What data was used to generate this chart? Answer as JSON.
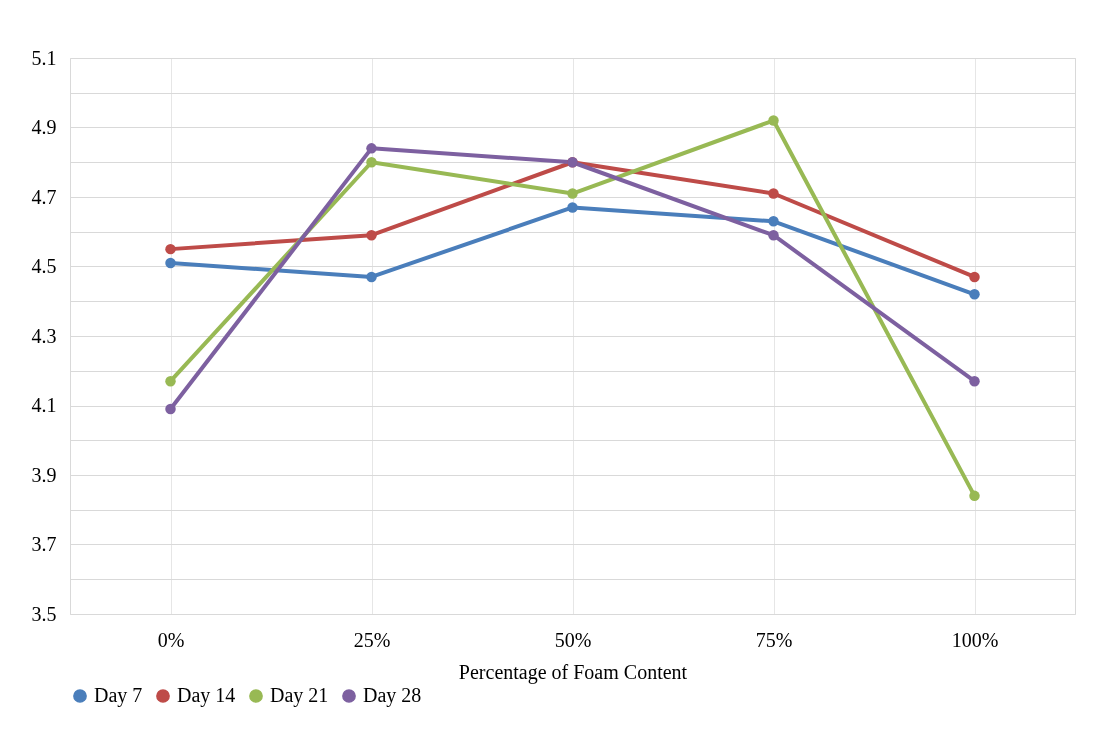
{
  "chart_data": {
    "type": "line",
    "xlabel": "Percentage of Foam Content",
    "categories": [
      "0%",
      "25%",
      "50%",
      "75%",
      "100%"
    ],
    "series": [
      {
        "name": "Day 7",
        "color": "#4a7ebb",
        "values": [
          4.51,
          4.47,
          4.67,
          4.63,
          4.42
        ]
      },
      {
        "name": "Day 14",
        "color": "#be4b48",
        "values": [
          4.55,
          4.59,
          4.8,
          4.71,
          4.47
        ]
      },
      {
        "name": "Day 21",
        "color": "#98b954",
        "values": [
          4.17,
          4.8,
          4.71,
          4.92,
          3.84
        ]
      },
      {
        "name": "Day 28",
        "color": "#7d60a0",
        "values": [
          4.09,
          4.84,
          4.8,
          4.59,
          4.17
        ]
      }
    ],
    "ylim": [
      3.5,
      5.1
    ],
    "yticks": [
      3.5,
      {
        "value": 3.6,
        "label": null
      },
      3.7,
      {
        "value": 3.8,
        "label": null
      },
      3.9,
      {
        "value": 4.0,
        "label": null
      },
      4.1,
      {
        "value": 4.2,
        "label": null
      },
      4.3,
      {
        "value": 4.4,
        "label": null
      },
      4.5,
      {
        "value": 4.6,
        "label": null
      },
      4.7,
      {
        "value": 4.8,
        "label": null
      },
      4.9,
      {
        "value": 5.0,
        "label": null
      },
      5.1
    ],
    "grid": true,
    "legend": "bottom",
    "marker": "circle",
    "line_style": "solid"
  }
}
